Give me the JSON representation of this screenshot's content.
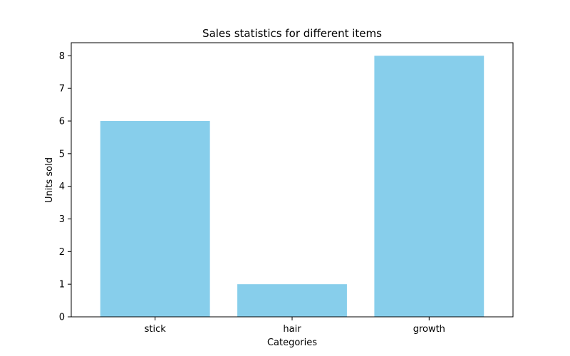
{
  "chart_data": {
    "type": "bar",
    "title": "Sales statistics for different items",
    "xlabel": "Categories",
    "ylabel": "Units sold",
    "categories": [
      "stick",
      "hair",
      "growth"
    ],
    "values": [
      6,
      1,
      8
    ],
    "ylim": [
      0,
      8.4
    ],
    "yticks": [
      "0",
      "1",
      "2",
      "3",
      "4",
      "5",
      "6",
      "7",
      "8"
    ],
    "grid": false,
    "bar_color": "#87ceeb"
  }
}
